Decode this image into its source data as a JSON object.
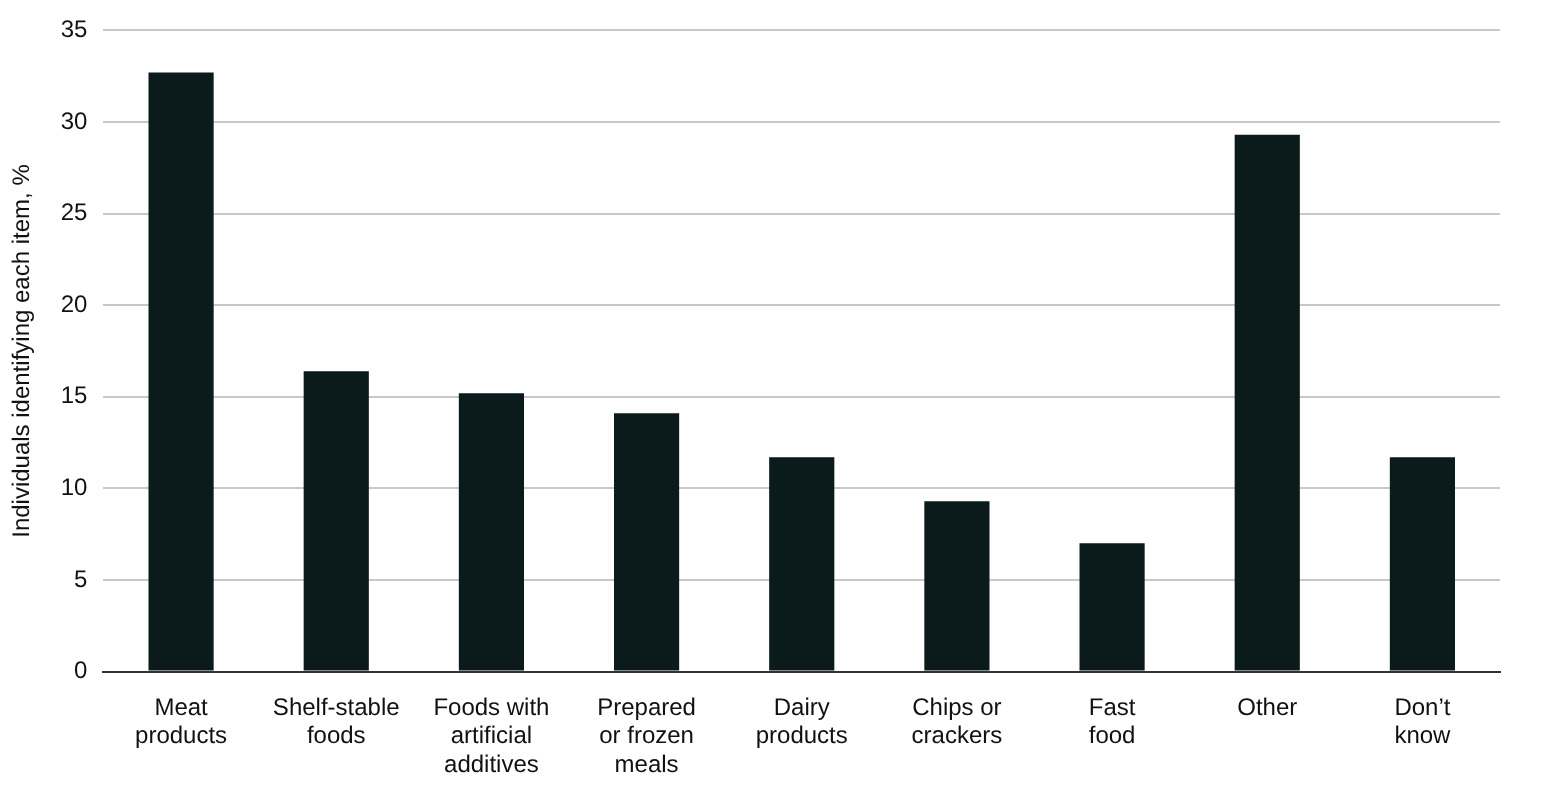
{
  "chart_data": {
    "type": "bar",
    "ylabel": "Individuals identifying each item, %",
    "categories": [
      "Meat\nproducts",
      "Shelf-stable\nfoods",
      "Foods with\nartificial\nadditives",
      "Prepared\nor frozen\nmeals",
      "Dairy\nproducts",
      "Chips or\ncrackers",
      "Fast\nfood",
      "Other",
      "Don’t\nknow"
    ],
    "values": [
      32.7,
      16.4,
      15.2,
      14.1,
      11.7,
      9.3,
      7.0,
      29.3,
      11.7
    ],
    "color": "#0b1a1a",
    "ylim": [
      0,
      35
    ],
    "yticks": [
      0,
      5,
      10,
      15,
      20,
      25,
      30,
      35
    ],
    "grid": "y"
  }
}
